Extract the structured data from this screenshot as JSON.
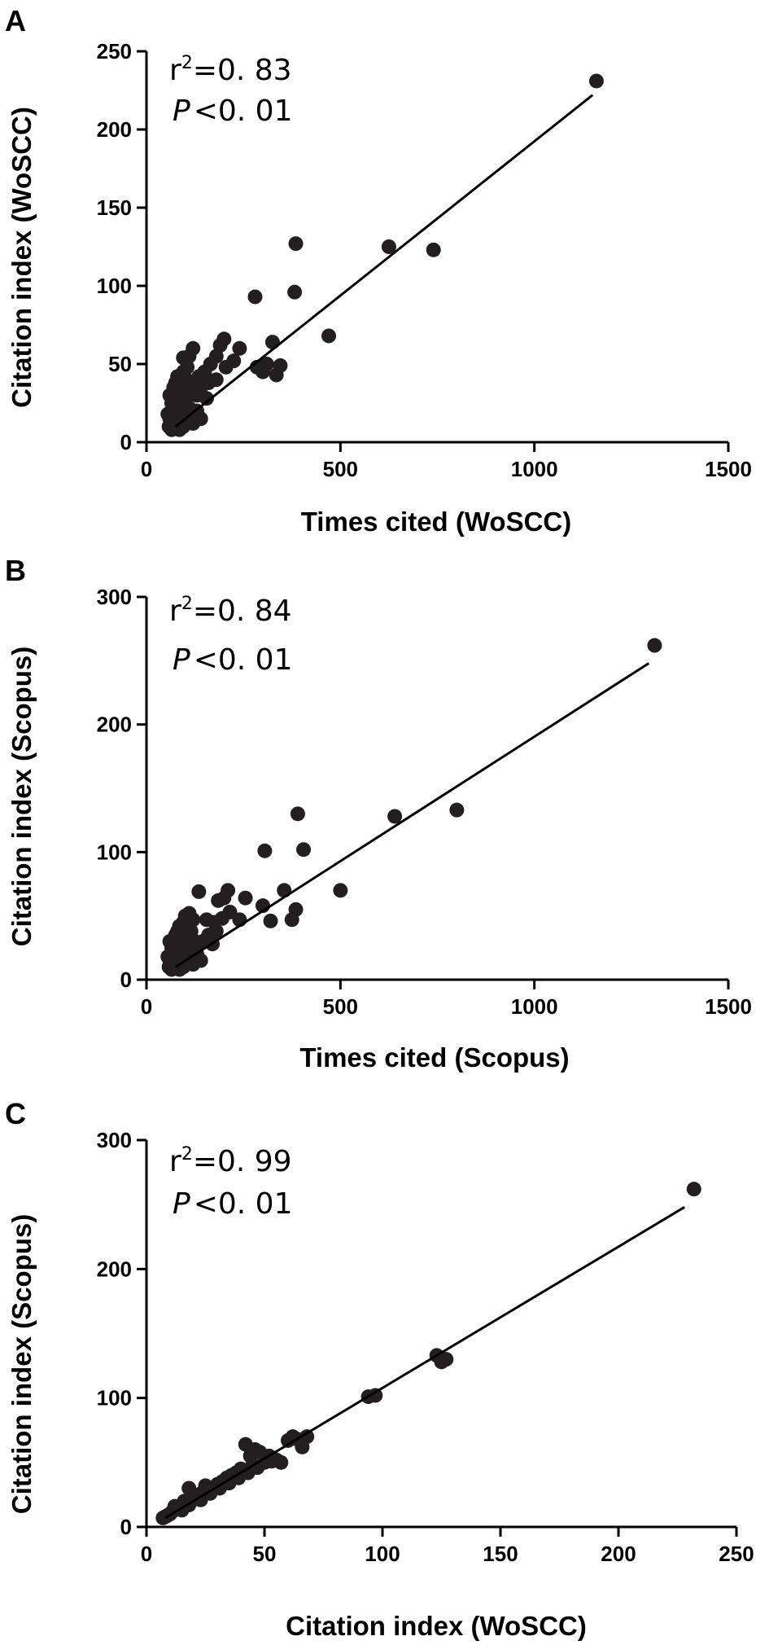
{
  "chart_data": [
    {
      "type": "scatter",
      "panel_label": "A",
      "xlabel": "Times cited (WoSCC)",
      "ylabel": "Citation index (WoSCC)",
      "xlim": [
        0,
        1500
      ],
      "ylim": [
        0,
        250
      ],
      "xticks": [
        "0",
        "500",
        "1000",
        "1500"
      ],
      "yticks": [
        "0",
        "50",
        "100",
        "150",
        "200",
        "250"
      ],
      "annotations": {
        "r2_prefix": "r",
        "r2_sup": "2",
        "r2_value": "=0. 83",
        "p_symbol": "P",
        "p_value": "<0. 01"
      },
      "fit_line": [
        [
          75,
          10
        ],
        [
          1150,
          222
        ]
      ],
      "points": [
        [
          1160,
          231
        ],
        [
          740,
          123
        ],
        [
          625,
          125
        ],
        [
          385,
          127
        ],
        [
          382,
          96
        ],
        [
          470,
          68
        ],
        [
          280,
          93
        ],
        [
          325,
          64
        ],
        [
          335,
          43
        ],
        [
          345,
          49
        ],
        [
          310,
          50
        ],
        [
          300,
          45
        ],
        [
          285,
          48
        ],
        [
          200,
          66
        ],
        [
          190,
          62
        ],
        [
          180,
          55
        ],
        [
          240,
          60
        ],
        [
          225,
          52
        ],
        [
          205,
          48
        ],
        [
          165,
          50
        ],
        [
          120,
          60
        ],
        [
          110,
          55
        ],
        [
          95,
          54
        ],
        [
          150,
          45
        ],
        [
          135,
          42
        ],
        [
          105,
          48
        ],
        [
          95,
          45
        ],
        [
          80,
          42
        ],
        [
          75,
          38
        ],
        [
          70,
          35
        ],
        [
          85,
          40
        ],
        [
          90,
          32
        ],
        [
          100,
          35
        ],
        [
          110,
          30
        ],
        [
          130,
          30
        ],
        [
          140,
          35
        ],
        [
          155,
          28
        ],
        [
          160,
          38
        ],
        [
          180,
          40
        ],
        [
          60,
          30
        ],
        [
          65,
          25
        ],
        [
          75,
          28
        ],
        [
          80,
          22
        ],
        [
          90,
          25
        ],
        [
          100,
          20
        ],
        [
          110,
          22
        ],
        [
          120,
          18
        ],
        [
          130,
          20
        ],
        [
          55,
          18
        ],
        [
          60,
          15
        ],
        [
          70,
          12
        ],
        [
          75,
          10
        ],
        [
          80,
          14
        ],
        [
          90,
          12
        ],
        [
          100,
          15
        ],
        [
          120,
          12
        ],
        [
          140,
          15
        ],
        [
          58,
          10
        ],
        [
          65,
          8
        ],
        [
          72,
          18
        ],
        [
          85,
          8
        ],
        [
          95,
          10
        ],
        [
          68,
          22
        ],
        [
          78,
          30
        ],
        [
          88,
          38
        ],
        [
          98,
          42
        ],
        [
          115,
          38
        ]
      ]
    },
    {
      "type": "scatter",
      "panel_label": "B",
      "xlabel": "Times cited (Scopus)",
      "ylabel": "Citation index (Scopus)",
      "xlim": [
        0,
        1500
      ],
      "ylim": [
        0,
        300
      ],
      "xticks": [
        "0",
        "500",
        "1000",
        "1500"
      ],
      "yticks": [
        "0",
        "100",
        "200",
        "300"
      ],
      "annotations": {
        "r2_prefix": "r",
        "r2_sup": "2",
        "r2_value": "=0. 84",
        "p_symbol": "P",
        "p_value": "<0. 01"
      },
      "fit_line": [
        [
          75,
          10
        ],
        [
          1295,
          248
        ]
      ],
      "points": [
        [
          1310,
          262
        ],
        [
          800,
          133
        ],
        [
          640,
          128
        ],
        [
          390,
          130
        ],
        [
          405,
          102
        ],
        [
          305,
          101
        ],
        [
          500,
          70
        ],
        [
          355,
          70
        ],
        [
          385,
          55
        ],
        [
          375,
          47
        ],
        [
          320,
          46
        ],
        [
          300,
          58
        ],
        [
          255,
          64
        ],
        [
          240,
          47
        ],
        [
          210,
          70
        ],
        [
          200,
          64
        ],
        [
          185,
          62
        ],
        [
          215,
          53
        ],
        [
          195,
          48
        ],
        [
          175,
          45
        ],
        [
          155,
          47
        ],
        [
          135,
          69
        ],
        [
          120,
          47
        ],
        [
          110,
          52
        ],
        [
          100,
          50
        ],
        [
          95,
          45
        ],
        [
          85,
          42
        ],
        [
          80,
          38
        ],
        [
          75,
          35
        ],
        [
          90,
          40
        ],
        [
          100,
          32
        ],
        [
          110,
          35
        ],
        [
          125,
          30
        ],
        [
          145,
          30
        ],
        [
          160,
          35
        ],
        [
          170,
          28
        ],
        [
          180,
          38
        ],
        [
          60,
          30
        ],
        [
          65,
          25
        ],
        [
          75,
          28
        ],
        [
          80,
          22
        ],
        [
          90,
          25
        ],
        [
          100,
          20
        ],
        [
          110,
          22
        ],
        [
          120,
          18
        ],
        [
          130,
          20
        ],
        [
          55,
          18
        ],
        [
          60,
          15
        ],
        [
          70,
          12
        ],
        [
          75,
          10
        ],
        [
          80,
          14
        ],
        [
          90,
          12
        ],
        [
          100,
          15
        ],
        [
          120,
          12
        ],
        [
          140,
          15
        ],
        [
          58,
          10
        ],
        [
          65,
          8
        ],
        [
          72,
          18
        ],
        [
          85,
          8
        ],
        [
          95,
          10
        ],
        [
          68,
          22
        ],
        [
          78,
          30
        ],
        [
          88,
          36
        ],
        [
          98,
          42
        ],
        [
          115,
          38
        ]
      ]
    },
    {
      "type": "scatter",
      "panel_label": "C",
      "xlabel": "Citation index (WoSCC)",
      "ylabel": "Citation index (Scopus)",
      "xlim": [
        0,
        250
      ],
      "ylim": [
        0,
        300
      ],
      "xticks": [
        "0",
        "50",
        "100",
        "150",
        "200",
        "250"
      ],
      "yticks": [
        "0",
        "100",
        "200",
        "300"
      ],
      "annotations": {
        "r2_prefix": "r",
        "r2_sup": "2",
        "r2_value": "=0. 99",
        "p_symbol": "P",
        "p_value": "<0. 01"
      },
      "fit_line": [
        [
          8,
          7
        ],
        [
          228,
          248
        ]
      ],
      "points": [
        [
          232,
          262
        ],
        [
          127,
          130
        ],
        [
          125,
          128
        ],
        [
          123,
          133
        ],
        [
          97,
          102
        ],
        [
          94,
          101
        ],
        [
          68,
          70
        ],
        [
          66,
          62
        ],
        [
          64,
          68
        ],
        [
          62,
          70
        ],
        [
          60,
          67
        ],
        [
          55,
          52
        ],
        [
          52,
          55
        ],
        [
          50,
          50
        ],
        [
          48,
          58
        ],
        [
          46,
          60
        ],
        [
          44,
          55
        ],
        [
          42,
          64
        ],
        [
          40,
          45
        ],
        [
          38,
          42
        ],
        [
          36,
          40
        ],
        [
          34,
          38
        ],
        [
          32,
          35
        ],
        [
          30,
          33
        ],
        [
          28,
          30
        ],
        [
          26,
          28
        ],
        [
          25,
          32
        ],
        [
          24,
          27
        ],
        [
          22,
          25
        ],
        [
          21,
          22
        ],
        [
          20,
          24
        ],
        [
          19,
          20
        ],
        [
          18,
          30
        ],
        [
          17,
          18
        ],
        [
          16,
          20
        ],
        [
          15,
          17
        ],
        [
          14,
          15
        ],
        [
          13,
          14
        ],
        [
          12,
          16
        ],
        [
          11,
          12
        ],
        [
          10,
          10
        ],
        [
          9,
          9
        ],
        [
          8,
          8
        ],
        [
          7,
          7
        ],
        [
          15,
          13
        ],
        [
          18,
          17
        ],
        [
          23,
          21
        ],
        [
          27,
          26
        ],
        [
          31,
          30
        ],
        [
          35,
          34
        ],
        [
          39,
          38
        ],
        [
          43,
          42
        ],
        [
          47,
          46
        ],
        [
          53,
          51
        ],
        [
          57,
          50
        ],
        [
          45,
          48
        ]
      ]
    }
  ]
}
